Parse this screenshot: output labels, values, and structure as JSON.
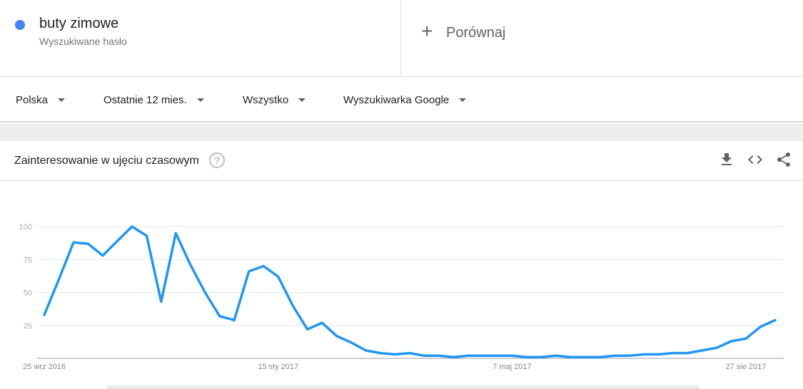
{
  "search_term": {
    "name": "buty zimowe",
    "subtitle": "Wyszukiwane hasło",
    "color": "#4285f4"
  },
  "compare": {
    "icon": "plus-icon",
    "label": "Porównaj"
  },
  "filters": [
    {
      "label": "Polska"
    },
    {
      "label": "Ostatnie 12 mies."
    },
    {
      "label": "Wszystko"
    },
    {
      "label": "Wyszukiwarka Google"
    }
  ],
  "card": {
    "title": "Zainteresowanie w ujęciu czasowym",
    "help_icon": "help-icon",
    "actions": [
      "download-icon",
      "embed-icon",
      "share-icon"
    ]
  },
  "chart_data": {
    "type": "line",
    "line_color": "#2196f3",
    "y_ticks": [
      25,
      50,
      75,
      100
    ],
    "ylim": [
      0,
      100
    ],
    "grid": true,
    "x_tick_labels": [
      "25 wrz 2016",
      "15 sty 2017",
      "7 maj 2017",
      "27 sie 2017"
    ],
    "x_tick_index": [
      0,
      16,
      32,
      48
    ],
    "series": [
      {
        "values": [
          33,
          60,
          88,
          87,
          78,
          89,
          100,
          93,
          43,
          95,
          71,
          50,
          32,
          29,
          66,
          70,
          62,
          40,
          22,
          27,
          17,
          12,
          6,
          4,
          3,
          4,
          2,
          2,
          1,
          2,
          2,
          2,
          2,
          1,
          1,
          2,
          1,
          1,
          1,
          2,
          2,
          3,
          3,
          4,
          4,
          6,
          8,
          13,
          15,
          24,
          29
        ]
      }
    ]
  }
}
